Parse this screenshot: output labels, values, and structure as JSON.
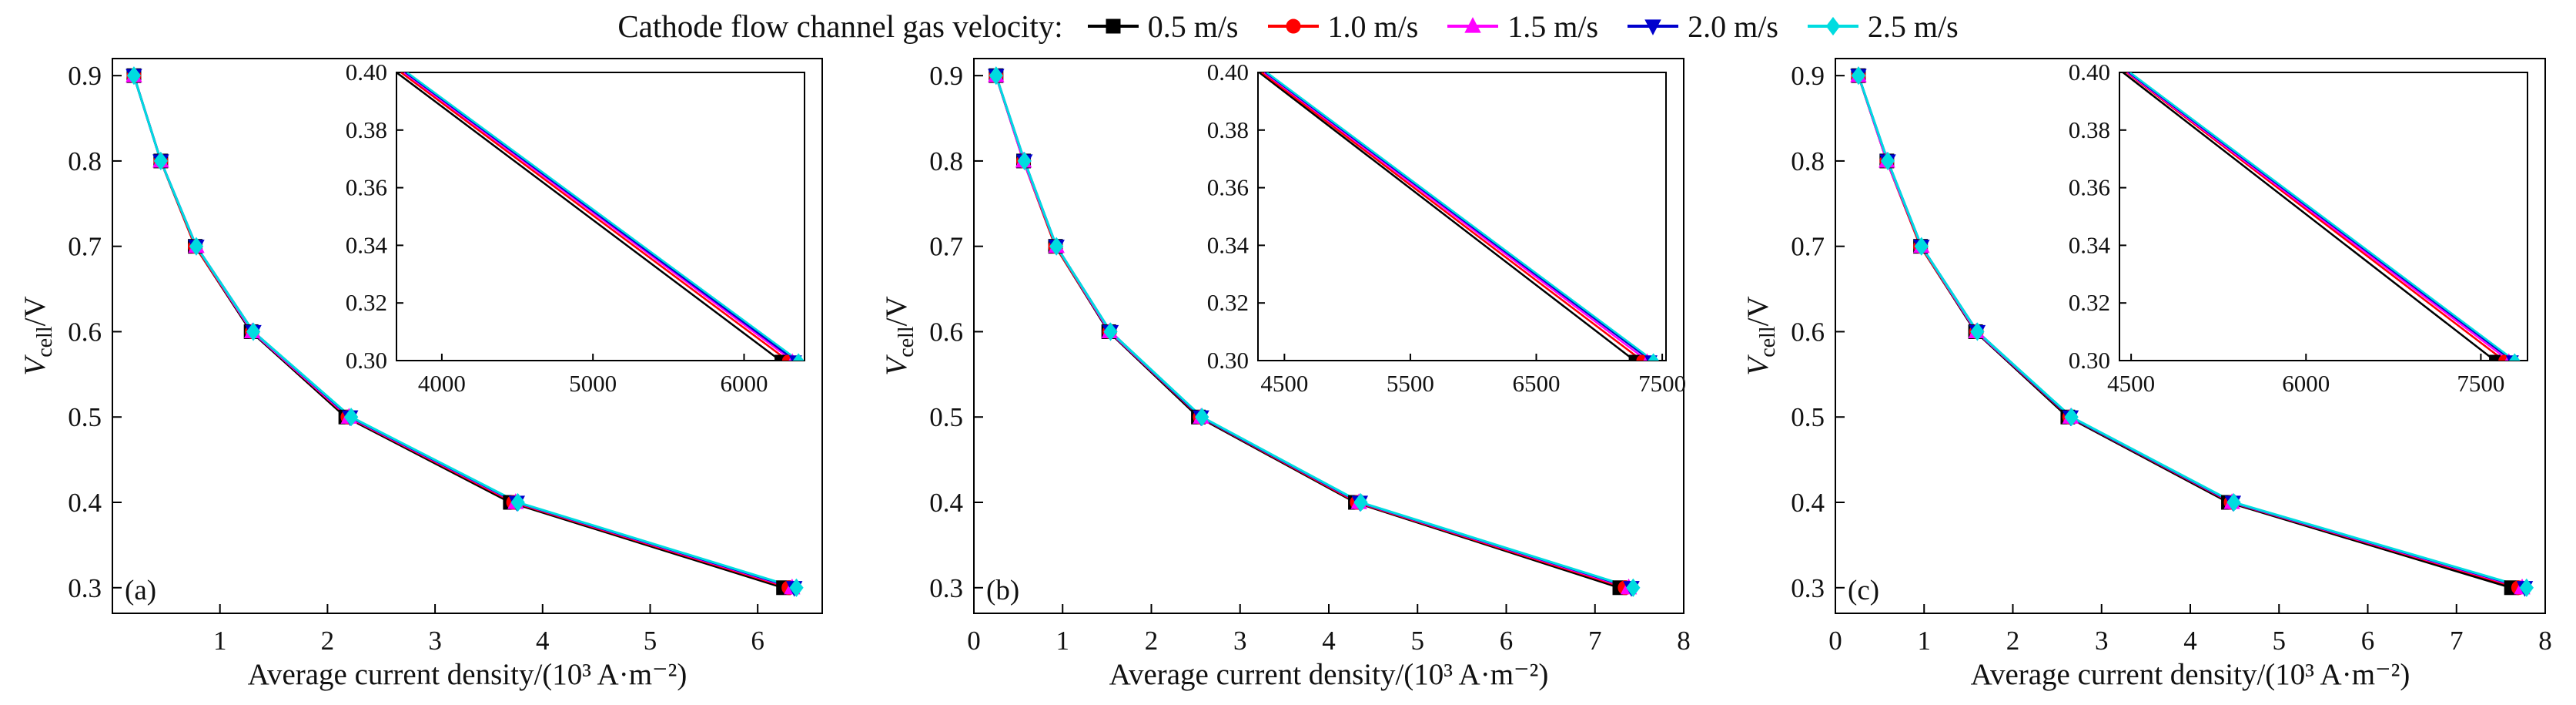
{
  "legend": {
    "title": "Cathode flow channel gas velocity:",
    "position": "top",
    "items": [
      {
        "label": "0.5 m/s",
        "color": "#000000",
        "marker": "square"
      },
      {
        "label": "1.0 m/s",
        "color": "#ff0000",
        "marker": "circle"
      },
      {
        "label": "1.5 m/s",
        "color": "#ff00ff",
        "marker": "triangle-up"
      },
      {
        "label": "2.0 m/s",
        "color": "#0000cd",
        "marker": "triangle-down"
      },
      {
        "label": "2.5 m/s",
        "color": "#00dce0",
        "marker": "diamond"
      }
    ]
  },
  "chart_data": [
    {
      "type": "line",
      "panel_label": "(a)",
      "xlabel": "Average current density/(10³ A·m⁻²)",
      "ylabel": "V_cell/V",
      "ylabel_parts": {
        "main": "V",
        "sub": "cell",
        "rest": "/V"
      },
      "xlim": [
        0,
        6.6
      ],
      "ylim": [
        0.27,
        0.92
      ],
      "xticks": [
        1,
        2,
        3,
        4,
        5,
        6
      ],
      "yticks": [
        0.3,
        0.4,
        0.5,
        0.6,
        0.7,
        0.8,
        0.9
      ],
      "grid": false,
      "voltages": [
        0.9,
        0.8,
        0.7,
        0.6,
        0.5,
        0.4,
        0.3
      ],
      "series": [
        {
          "name": "0.5 m/s",
          "values": [
            0.2,
            0.45,
            0.77,
            1.29,
            2.17,
            3.7,
            6.24
          ]
        },
        {
          "name": "1.0 m/s",
          "values": [
            0.2,
            0.45,
            0.77,
            1.3,
            2.19,
            3.73,
            6.29
          ]
        },
        {
          "name": "1.5 m/s",
          "values": [
            0.2,
            0.45,
            0.78,
            1.3,
            2.2,
            3.75,
            6.32
          ]
        },
        {
          "name": "2.0 m/s",
          "values": [
            0.2,
            0.45,
            0.78,
            1.31,
            2.21,
            3.76,
            6.34
          ]
        },
        {
          "name": "2.5 m/s",
          "values": [
            0.2,
            0.45,
            0.78,
            1.31,
            2.22,
            3.77,
            6.36
          ]
        }
      ],
      "inset": {
        "xlim": [
          3700,
          6400
        ],
        "ylim": [
          0.3,
          0.4
        ],
        "xticks": [
          4000,
          5000,
          6000
        ],
        "yticks": [
          0.4,
          0.38,
          0.36,
          0.34,
          0.32,
          0.3
        ]
      }
    },
    {
      "type": "line",
      "panel_label": "(b)",
      "xlabel": "Average current density/(10³ A·m⁻²)",
      "ylabel": "V_cell/V",
      "ylabel_parts": {
        "main": "V",
        "sub": "cell",
        "rest": "/V"
      },
      "xlim": [
        0,
        8
      ],
      "ylim": [
        0.27,
        0.92
      ],
      "xticks": [
        0,
        1,
        2,
        3,
        4,
        5,
        6,
        7,
        8
      ],
      "yticks": [
        0.3,
        0.4,
        0.5,
        0.6,
        0.7,
        0.8,
        0.9
      ],
      "grid": false,
      "voltages": [
        0.9,
        0.8,
        0.7,
        0.6,
        0.5,
        0.4,
        0.3
      ],
      "series": [
        {
          "name": "0.5 m/s",
          "values": [
            0.25,
            0.56,
            0.92,
            1.52,
            2.53,
            4.3,
            7.28
          ]
        },
        {
          "name": "1.0 m/s",
          "values": [
            0.25,
            0.56,
            0.92,
            1.53,
            2.55,
            4.32,
            7.34
          ]
        },
        {
          "name": "1.5 m/s",
          "values": [
            0.25,
            0.56,
            0.93,
            1.53,
            2.56,
            4.34,
            7.38
          ]
        },
        {
          "name": "2.0 m/s",
          "values": [
            0.25,
            0.57,
            0.93,
            1.54,
            2.56,
            4.35,
            7.41
          ]
        },
        {
          "name": "2.5 m/s",
          "values": [
            0.25,
            0.57,
            0.93,
            1.54,
            2.57,
            4.36,
            7.43
          ]
        }
      ],
      "inset": {
        "xlim": [
          4290,
          7530
        ],
        "ylim": [
          0.3,
          0.4
        ],
        "xticks": [
          4500,
          5500,
          6500,
          7500
        ],
        "yticks": [
          0.4,
          0.38,
          0.36,
          0.34,
          0.32,
          0.3
        ]
      }
    },
    {
      "type": "line",
      "panel_label": "(c)",
      "xlabel": "Average current density/(10³ A·m⁻²)",
      "ylabel": "V_cell/V",
      "ylabel_parts": {
        "main": "V",
        "sub": "cell",
        "rest": "/V"
      },
      "xlim": [
        0,
        8
      ],
      "ylim": [
        0.27,
        0.92
      ],
      "xticks": [
        0,
        1,
        2,
        3,
        4,
        5,
        6,
        7,
        8
      ],
      "yticks": [
        0.3,
        0.4,
        0.5,
        0.6,
        0.7,
        0.8,
        0.9
      ],
      "grid": false,
      "voltages": [
        0.9,
        0.8,
        0.7,
        0.6,
        0.5,
        0.4,
        0.3
      ],
      "series": [
        {
          "name": "0.5 m/s",
          "values": [
            0.26,
            0.58,
            0.96,
            1.58,
            2.62,
            4.43,
            7.62
          ]
        },
        {
          "name": "1.0 m/s",
          "values": [
            0.26,
            0.58,
            0.96,
            1.59,
            2.64,
            4.46,
            7.7
          ]
        },
        {
          "name": "1.5 m/s",
          "values": [
            0.26,
            0.58,
            0.97,
            1.59,
            2.65,
            4.47,
            7.74
          ]
        },
        {
          "name": "2.0 m/s",
          "values": [
            0.26,
            0.59,
            0.97,
            1.6,
            2.65,
            4.48,
            7.77
          ]
        },
        {
          "name": "2.5 m/s",
          "values": [
            0.26,
            0.59,
            0.97,
            1.6,
            2.66,
            4.49,
            7.79
          ]
        }
      ],
      "inset": {
        "xlim": [
          4400,
          7900
        ],
        "ylim": [
          0.3,
          0.4
        ],
        "xticks": [
          4500,
          6000,
          7500
        ],
        "yticks": [
          0.4,
          0.38,
          0.36,
          0.34,
          0.32,
          0.3
        ]
      }
    }
  ]
}
